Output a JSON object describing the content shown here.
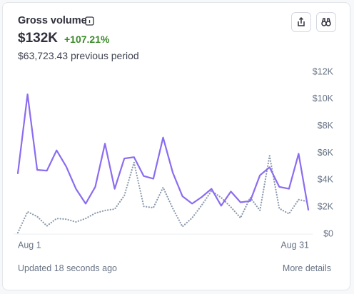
{
  "header": {
    "title": "Gross volume",
    "value": "$132K",
    "change": "+107.21%",
    "previous": "$63,723.43 previous period"
  },
  "footer": {
    "updated": "Updated 18 seconds ago",
    "link": "More details"
  },
  "chart_data": {
    "type": "line",
    "categories": [
      "Aug 1",
      null,
      null,
      null,
      null,
      null,
      null,
      null,
      null,
      null,
      null,
      null,
      null,
      null,
      null,
      null,
      null,
      null,
      null,
      null,
      null,
      null,
      null,
      null,
      null,
      null,
      null,
      null,
      null,
      null,
      "Aug 31"
    ],
    "series": [
      {
        "color": "#8b6cf0",
        "style": "solid",
        "values": [
          4500,
          10350,
          4750,
          4700,
          6200,
          5000,
          3350,
          2250,
          3500,
          6700,
          3350,
          5600,
          5700,
          4300,
          4100,
          7150,
          4550,
          2800,
          2250,
          2750,
          3350,
          2100,
          3150,
          2350,
          2450,
          4350,
          4950,
          3500,
          3350,
          5950,
          1800
        ]
      },
      {
        "color": "#8a99ab",
        "style": "dotted",
        "values": [
          100,
          1650,
          1300,
          600,
          1150,
          1100,
          900,
          1150,
          1550,
          1750,
          1850,
          2850,
          5300,
          2050,
          1950,
          3450,
          1900,
          550,
          1200,
          2150,
          3200,
          2700,
          2000,
          1200,
          2700,
          1750,
          5800,
          1900,
          1500,
          2550,
          2400
        ]
      }
    ],
    "ylim": [
      0,
      12000
    ],
    "yticks": [
      {
        "value": 0,
        "label": "$0"
      },
      {
        "value": 2000,
        "label": "$2K"
      },
      {
        "value": 4000,
        "label": "$4K"
      },
      {
        "value": 6000,
        "label": "$6K"
      },
      {
        "value": 8000,
        "label": "$8K"
      },
      {
        "value": 10000,
        "label": "$10K"
      },
      {
        "value": 12000,
        "label": "$12K"
      }
    ],
    "grid": false
  }
}
